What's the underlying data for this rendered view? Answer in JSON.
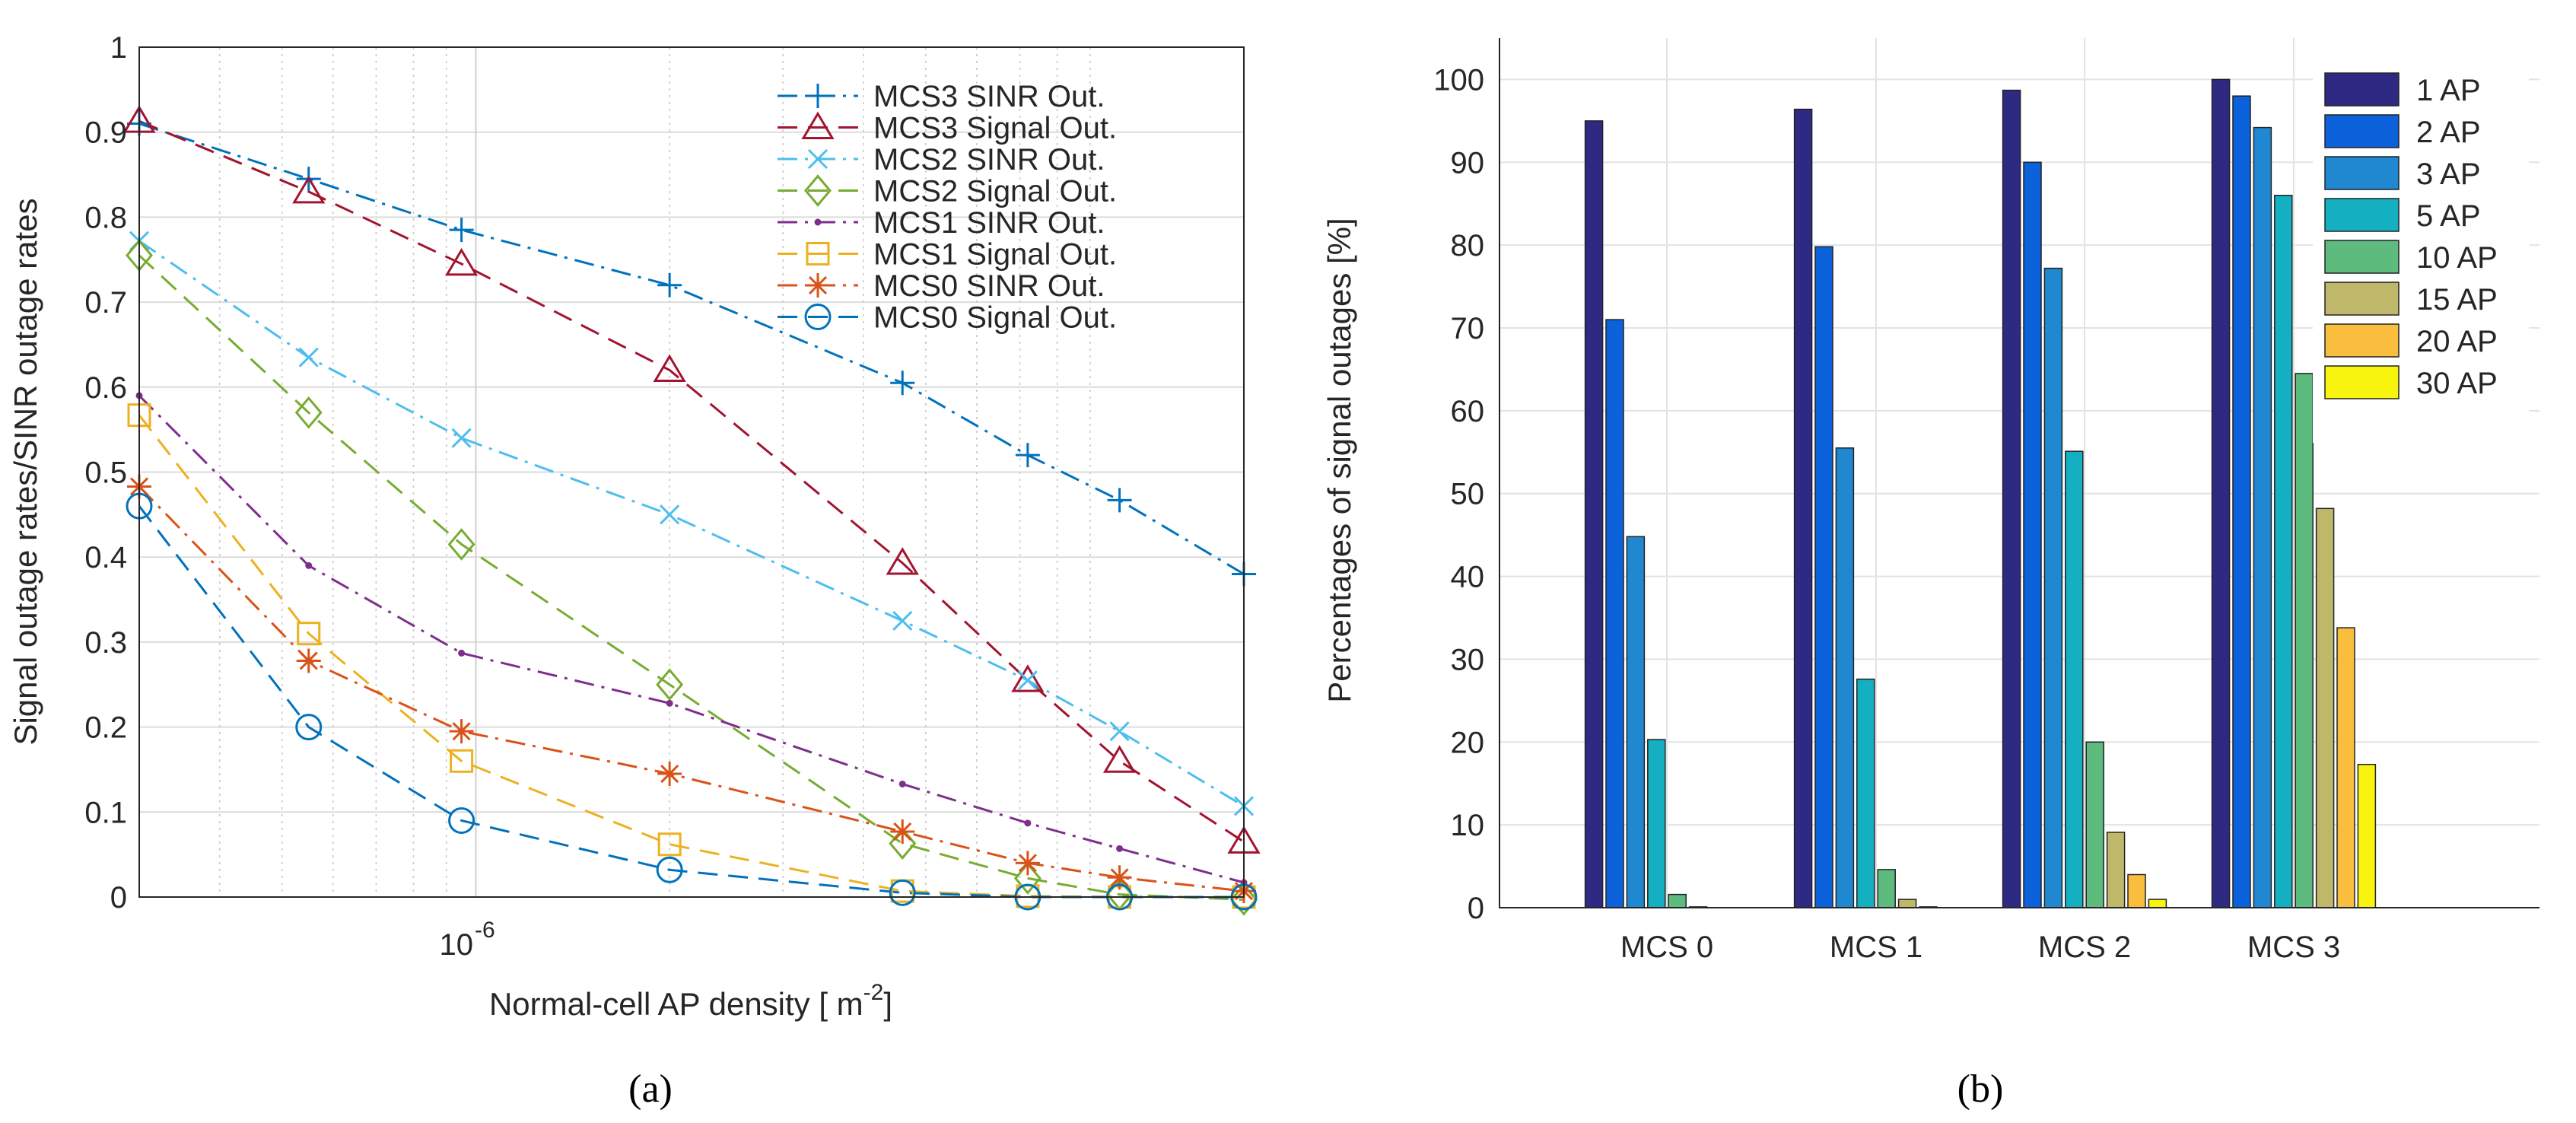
{
  "chart_data": [
    {
      "type": "line",
      "caption": "(a)",
      "xlabel": "Normal-cell AP density [ m",
      "xlabel_exp": "-2",
      "xlabel_end": "]",
      "ylabel": "Signal outage rates/SINR outage rates",
      "x_scale": "log",
      "xlim": [
        3e-07,
        1.56e-05
      ],
      "x_tick_label": {
        "base": "10",
        "exp": "-6"
      },
      "ylim": [
        0,
        1
      ],
      "yticks": [
        0,
        0.1,
        0.2,
        0.3,
        0.4,
        0.5,
        0.6,
        0.7,
        0.8,
        0.9,
        1
      ],
      "ytick_labels": [
        "0",
        "0.1",
        "0.2",
        "0.3",
        "0.4",
        "0.5",
        "0.6",
        "0.7",
        "0.8",
        "0.9",
        "1"
      ],
      "grid": true,
      "legend_position": "top-right",
      "x": [
        3e-07,
        5.5e-07,
        9.5e-07,
        2e-06,
        4.6e-06,
        7.2e-06,
        1e-05,
        1.56e-05
      ],
      "series": [
        {
          "name": "MCS3 SINR Out.",
          "color": "#0072BD",
          "dash": "dashdot",
          "marker": "plus",
          "values": [
            0.91,
            0.845,
            0.785,
            0.72,
            0.605,
            0.52,
            0.467,
            0.38
          ]
        },
        {
          "name": "MCS3 Signal Out.",
          "color": "#A2142F",
          "dash": "dashed",
          "marker": "triangle",
          "values": [
            0.913,
            0.83,
            0.745,
            0.62,
            0.393,
            0.255,
            0.16,
            0.065
          ]
        },
        {
          "name": "MCS2 SINR Out.",
          "color": "#4DBEEE",
          "dash": "dashdot",
          "marker": "x",
          "values": [
            0.772,
            0.635,
            0.54,
            0.45,
            0.325,
            0.255,
            0.195,
            0.107
          ]
        },
        {
          "name": "MCS2 Signal Out.",
          "color": "#77AC30",
          "dash": "dashed",
          "marker": "diamond",
          "values": [
            0.755,
            0.57,
            0.415,
            0.25,
            0.063,
            0.022,
            0.003,
            -0.003
          ]
        },
        {
          "name": "MCS1 SINR Out.",
          "color": "#7E2F8E",
          "dash": "dashdot",
          "marker": "dot",
          "values": [
            0.59,
            0.39,
            0.287,
            0.228,
            0.133,
            0.087,
            0.057,
            0.017
          ]
        },
        {
          "name": "MCS1 Signal Out.",
          "color": "#EDB120",
          "dash": "dashed",
          "marker": "square",
          "values": [
            0.567,
            0.31,
            0.16,
            0.062,
            0.007,
            0.001,
            0.0,
            0.0
          ]
        },
        {
          "name": "MCS0 SINR Out.",
          "color": "#D95319",
          "dash": "dashdot",
          "marker": "asterisk",
          "values": [
            0.483,
            0.278,
            0.195,
            0.145,
            0.077,
            0.04,
            0.023,
            0.007
          ]
        },
        {
          "name": "MCS0 Signal Out.",
          "color": "#0072BD",
          "dash": "dashed",
          "marker": "circle",
          "values": [
            0.46,
            0.2,
            0.09,
            0.032,
            0.005,
            0.0,
            0.0,
            0.0
          ]
        }
      ]
    },
    {
      "type": "bar",
      "caption": "(b)",
      "ylabel": "Percentages of signal outages [%]",
      "xlabel": "",
      "ylim": [
        0,
        105
      ],
      "yticks": [
        0,
        10,
        20,
        30,
        40,
        50,
        60,
        70,
        80,
        90,
        100
      ],
      "grid": true,
      "legend_position": "top-right",
      "categories": [
        "MCS 0",
        "MCS 1",
        "MCS 2",
        "MCS 3"
      ],
      "series": [
        {
          "name": "1 AP",
          "color": "#2E2A84",
          "values": [
            95.0,
            96.4,
            98.7,
            100.0
          ]
        },
        {
          "name": "2 AP",
          "color": "#0B62DA",
          "values": [
            71.0,
            79.8,
            90.0,
            98.0
          ]
        },
        {
          "name": "3 AP",
          "color": "#1F88D1",
          "values": [
            44.8,
            55.5,
            77.2,
            94.2
          ]
        },
        {
          "name": "5 AP",
          "color": "#14AFC0",
          "values": [
            20.3,
            27.6,
            55.1,
            86.0
          ]
        },
        {
          "name": "10 AP",
          "color": "#5DBB7E",
          "values": [
            1.6,
            4.6,
            20.0,
            64.5
          ]
        },
        {
          "name": "15 AP",
          "color": "#BFB86A",
          "values": [
            0.1,
            1.0,
            9.1,
            48.2
          ]
        },
        {
          "name": "20 AP",
          "color": "#FABE3E",
          "values": [
            0.0,
            0.1,
            4.0,
            33.8
          ]
        },
        {
          "name": "30 AP",
          "color": "#F8F40E",
          "values": [
            0.0,
            0.0,
            1.0,
            17.3
          ]
        }
      ]
    }
  ]
}
